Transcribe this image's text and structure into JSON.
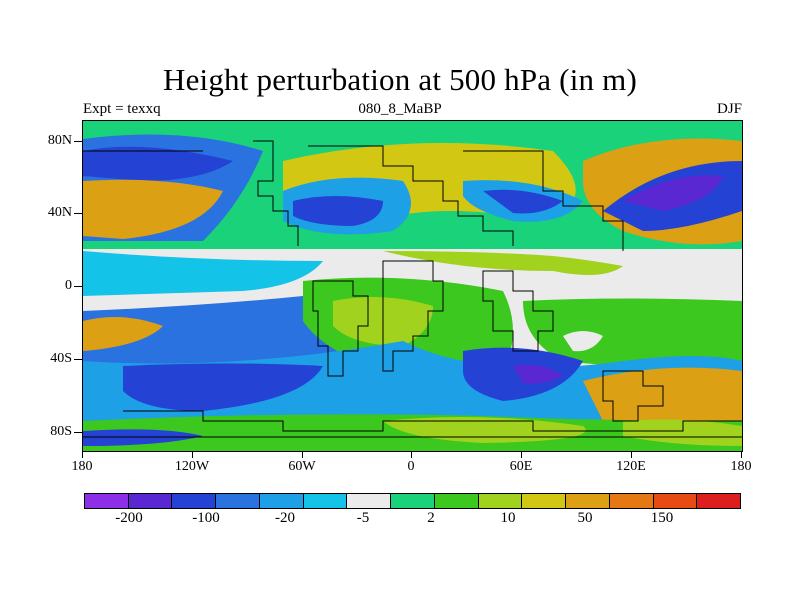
{
  "plot": {
    "title": "Height perturbation at 500 hPa (in m)",
    "left_label": "Expt = texxq",
    "center_label": "080_8_MaBP",
    "right_label": "DJF"
  },
  "axes": {
    "lat_ticks": [
      "80N",
      "40N",
      "0",
      "40S",
      "80S"
    ],
    "lon_ticks": [
      "180",
      "120W",
      "60W",
      "0",
      "60E",
      "120E",
      "180"
    ]
  },
  "colorbar": {
    "colors": [
      "#8c2fe6",
      "#5a28d2",
      "#2442d4",
      "#2a72e0",
      "#1ea0e6",
      "#14c4e8",
      "#ebebeb",
      "#19d27a",
      "#3cc81e",
      "#a0d21e",
      "#d2c814",
      "#dca014",
      "#e67814",
      "#e64b14",
      "#dc1e1e"
    ],
    "labels": [
      "-200",
      "-100",
      "-20",
      "-5",
      "2",
      "10",
      "50",
      "150"
    ]
  }
}
